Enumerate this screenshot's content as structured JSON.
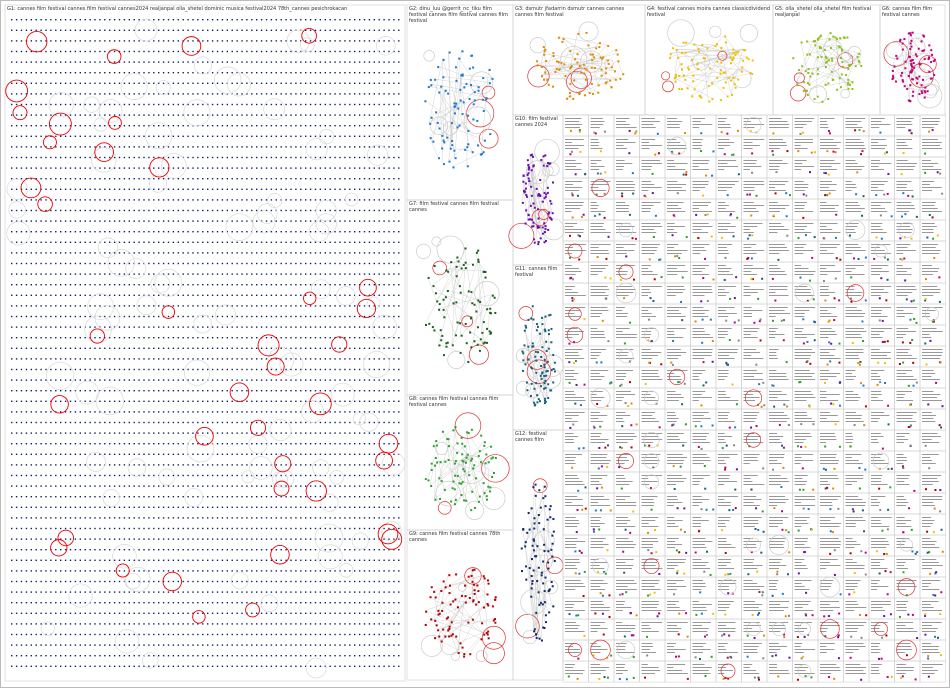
{
  "groups": [
    {
      "label": "G1: cannes film festival cannes film festival cannes2024 realjanpal olla_shetel dominic musica festival2024 78th_cannes pesichrokacan",
      "color": "#0b1f66"
    },
    {
      "label": "G2: dinu_luu @gerrit_nc_tiku film festival cannes film festival cannes film festival",
      "color": "#1f78c8"
    },
    {
      "label": "G3: dsmutr jfadarrin dsmutr cannes cannes cannes film festival",
      "color": "#e08a00"
    },
    {
      "label": "G4: festival cannes moira cannes classicdividend festival",
      "color": "#f0c000"
    },
    {
      "label": "G5: olla_shetel olla_shetel film festival realjanpal",
      "color": "#8fbf1a"
    },
    {
      "label": "G6: cannes film film festival cannes",
      "color": "#c0007a"
    },
    {
      "label": "G7: film festival cannes film festival cannes",
      "color": "#1b5e20"
    },
    {
      "label": "G8: cannes film festival cannes film festival cannes",
      "color": "#2ca02c"
    },
    {
      "label": "G9: cannes film festival cannes 78th cannes",
      "color": "#b00000"
    },
    {
      "label": "G10: film festival cannes 2024",
      "color": "#6a0dad"
    },
    {
      "label": "G11: cannes film festival",
      "color": "#1a5e7a"
    },
    {
      "label": "G12: festival cannes film",
      "color": "#0a2a6b"
    }
  ]
}
